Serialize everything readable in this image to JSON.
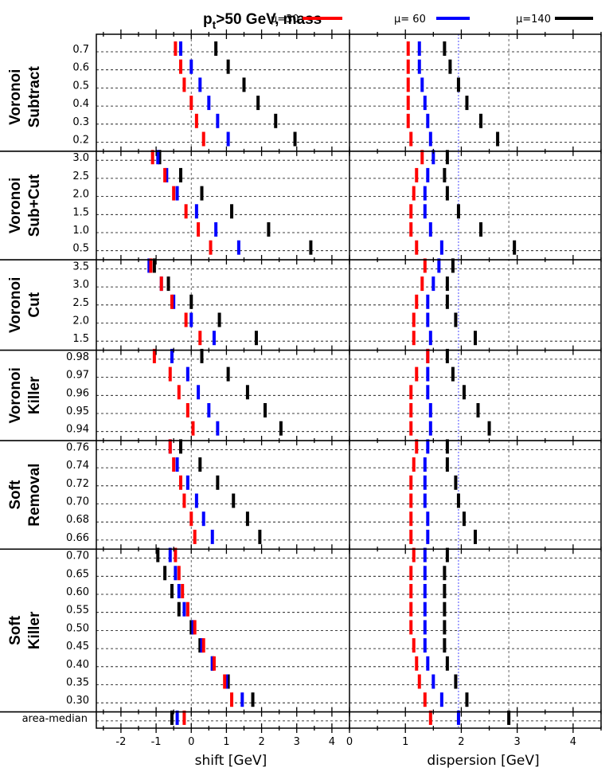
{
  "chart_data": {
    "type": "scatter",
    "title": "p_t>50 GeV, mass",
    "title_main": "p",
    "title_sub": "t",
    "title_rest": ">50 GeV, mass",
    "legend": [
      {
        "label": "μ=30",
        "color": "#ff0000"
      },
      {
        "label": "μ= 60",
        "color": "#0000ff"
      },
      {
        "label": "μ=140",
        "color": "#000000"
      }
    ],
    "panels": [
      {
        "xlabel": "shift [GeV]",
        "xlim": [
          -2.7,
          4.5
        ],
        "ticks": [
          -2,
          -1,
          0,
          1,
          2,
          3,
          4
        ]
      },
      {
        "xlabel": "dispersion [GeV]",
        "xlim": [
          0,
          4.5
        ],
        "ticks": [
          0,
          1,
          2,
          3,
          4
        ]
      }
    ],
    "groups": [
      {
        "name_lines": [
          "Voronoi",
          "Subtract"
        ],
        "rows": [
          {
            "label": "0.7",
            "shift": [
              -0.45,
              -0.3,
              0.7
            ],
            "disp": [
              1.05,
              1.25,
              1.7
            ]
          },
          {
            "label": "0.6",
            "shift": [
              -0.3,
              0.0,
              1.05
            ],
            "disp": [
              1.05,
              1.25,
              1.8
            ]
          },
          {
            "label": "0.5",
            "shift": [
              -0.2,
              0.25,
              1.5
            ],
            "disp": [
              1.05,
              1.3,
              1.95
            ]
          },
          {
            "label": "0.4",
            "shift": [
              0.0,
              0.5,
              1.9
            ],
            "disp": [
              1.05,
              1.35,
              2.1
            ]
          },
          {
            "label": "0.3",
            "shift": [
              0.15,
              0.75,
              2.4
            ],
            "disp": [
              1.05,
              1.4,
              2.35
            ]
          },
          {
            "label": "0.2",
            "shift": [
              0.35,
              1.05,
              2.95
            ],
            "disp": [
              1.1,
              1.45,
              2.65
            ]
          }
        ]
      },
      {
        "name_lines": [
          "Voronoi",
          "Sub+Cut"
        ],
        "rows": [
          {
            "label": "3.0",
            "shift": [
              -1.1,
              -0.95,
              -0.9
            ],
            "disp": [
              1.3,
              1.5,
              1.75
            ]
          },
          {
            "label": "2.5",
            "shift": [
              -0.75,
              -0.7,
              -0.3
            ],
            "disp": [
              1.2,
              1.4,
              1.7
            ]
          },
          {
            "label": "2.0",
            "shift": [
              -0.5,
              -0.4,
              0.3
            ],
            "disp": [
              1.15,
              1.35,
              1.75
            ]
          },
          {
            "label": "1.5",
            "shift": [
              -0.15,
              0.15,
              1.15
            ],
            "disp": [
              1.1,
              1.35,
              1.95
            ]
          },
          {
            "label": "1.0",
            "shift": [
              0.2,
              0.7,
              2.2
            ],
            "disp": [
              1.1,
              1.45,
              2.35
            ]
          },
          {
            "label": "0.5",
            "shift": [
              0.55,
              1.35,
              3.4
            ],
            "disp": [
              1.2,
              1.65,
              2.95
            ]
          }
        ]
      },
      {
        "name_lines": [
          "Voronoi",
          "Cut"
        ],
        "rows": [
          {
            "label": "3.5",
            "shift": [
              -1.15,
              -1.2,
              -1.05
            ],
            "disp": [
              1.35,
              1.6,
              1.85
            ]
          },
          {
            "label": "3.0",
            "shift": [
              -0.85,
              -0.85,
              -0.65
            ],
            "disp": [
              1.3,
              1.5,
              1.75
            ]
          },
          {
            "label": "2.5",
            "shift": [
              -0.55,
              -0.5,
              0.0
            ],
            "disp": [
              1.2,
              1.4,
              1.75
            ]
          },
          {
            "label": "2.0",
            "shift": [
              -0.15,
              0.0,
              0.8
            ],
            "disp": [
              1.15,
              1.4,
              1.9
            ]
          },
          {
            "label": "1.5",
            "shift": [
              0.25,
              0.65,
              1.85
            ],
            "disp": [
              1.15,
              1.45,
              2.25
            ]
          }
        ]
      },
      {
        "name_lines": [
          "Voronoi",
          "Killer"
        ],
        "rows": [
          {
            "label": "0.98",
            "shift": [
              -1.05,
              -0.55,
              0.3
            ],
            "disp": [
              1.4,
              1.4,
              1.75
            ]
          },
          {
            "label": "0.97",
            "shift": [
              -0.6,
              -0.1,
              1.05
            ],
            "disp": [
              1.2,
              1.4,
              1.85
            ]
          },
          {
            "label": "0.96",
            "shift": [
              -0.35,
              0.2,
              1.6
            ],
            "disp": [
              1.1,
              1.4,
              2.05
            ]
          },
          {
            "label": "0.95",
            "shift": [
              -0.1,
              0.5,
              2.1
            ],
            "disp": [
              1.1,
              1.45,
              2.3
            ]
          },
          {
            "label": "0.94",
            "shift": [
              0.05,
              0.75,
              2.55
            ],
            "disp": [
              1.1,
              1.45,
              2.5
            ]
          }
        ]
      },
      {
        "name_lines": [
          "Soft",
          "Removal"
        ],
        "rows": [
          {
            "label": "0.76",
            "shift": [
              -0.6,
              -0.6,
              -0.3
            ],
            "disp": [
              1.2,
              1.4,
              1.75
            ]
          },
          {
            "label": "0.74",
            "shift": [
              -0.5,
              -0.4,
              0.25
            ],
            "disp": [
              1.15,
              1.35,
              1.75
            ]
          },
          {
            "label": "0.72",
            "shift": [
              -0.3,
              -0.1,
              0.75
            ],
            "disp": [
              1.1,
              1.35,
              1.9
            ]
          },
          {
            "label": "0.70",
            "shift": [
              -0.2,
              0.15,
              1.2
            ],
            "disp": [
              1.1,
              1.35,
              1.95
            ]
          },
          {
            "label": "0.68",
            "shift": [
              0.0,
              0.35,
              1.6
            ],
            "disp": [
              1.1,
              1.4,
              2.05
            ]
          },
          {
            "label": "0.66",
            "shift": [
              0.1,
              0.6,
              1.95
            ],
            "disp": [
              1.1,
              1.4,
              2.25
            ]
          }
        ]
      },
      {
        "name_lines": [
          "Soft",
          "Killer"
        ],
        "rows": [
          {
            "label": "0.70",
            "shift": [
              -0.45,
              -0.6,
              -0.95
            ],
            "disp": [
              1.15,
              1.35,
              1.75
            ]
          },
          {
            "label": "0.65",
            "shift": [
              -0.35,
              -0.45,
              -0.75
            ],
            "disp": [
              1.1,
              1.35,
              1.7
            ]
          },
          {
            "label": "0.60",
            "shift": [
              -0.25,
              -0.35,
              -0.55
            ],
            "disp": [
              1.1,
              1.35,
              1.7
            ]
          },
          {
            "label": "0.55",
            "shift": [
              -0.1,
              -0.2,
              -0.35
            ],
            "disp": [
              1.1,
              1.35,
              1.7
            ]
          },
          {
            "label": "0.50",
            "shift": [
              0.1,
              0.05,
              0.0
            ],
            "disp": [
              1.1,
              1.35,
              1.7
            ]
          },
          {
            "label": "0.45",
            "shift": [
              0.35,
              0.3,
              0.25
            ],
            "disp": [
              1.15,
              1.35,
              1.7
            ]
          },
          {
            "label": "0.40",
            "shift": [
              0.65,
              0.6,
              0.6
            ],
            "disp": [
              1.2,
              1.4,
              1.75
            ]
          },
          {
            "label": "0.35",
            "shift": [
              0.95,
              1.0,
              1.05
            ],
            "disp": [
              1.25,
              1.5,
              1.9
            ]
          },
          {
            "label": "0.30",
            "shift": [
              1.15,
              1.45,
              1.75
            ],
            "disp": [
              1.35,
              1.65,
              2.1
            ]
          }
        ]
      },
      {
        "name_lines": [],
        "rows": [
          {
            "label": "area-median",
            "shift": [
              -0.2,
              -0.4,
              -0.55
            ],
            "disp": [
              1.45,
              1.95,
              2.85
            ]
          }
        ]
      }
    ],
    "reference_lines": {
      "shift": [
        0
      ],
      "disp_black": [
        2.85
      ],
      "disp_blue": [
        1.95
      ]
    }
  }
}
